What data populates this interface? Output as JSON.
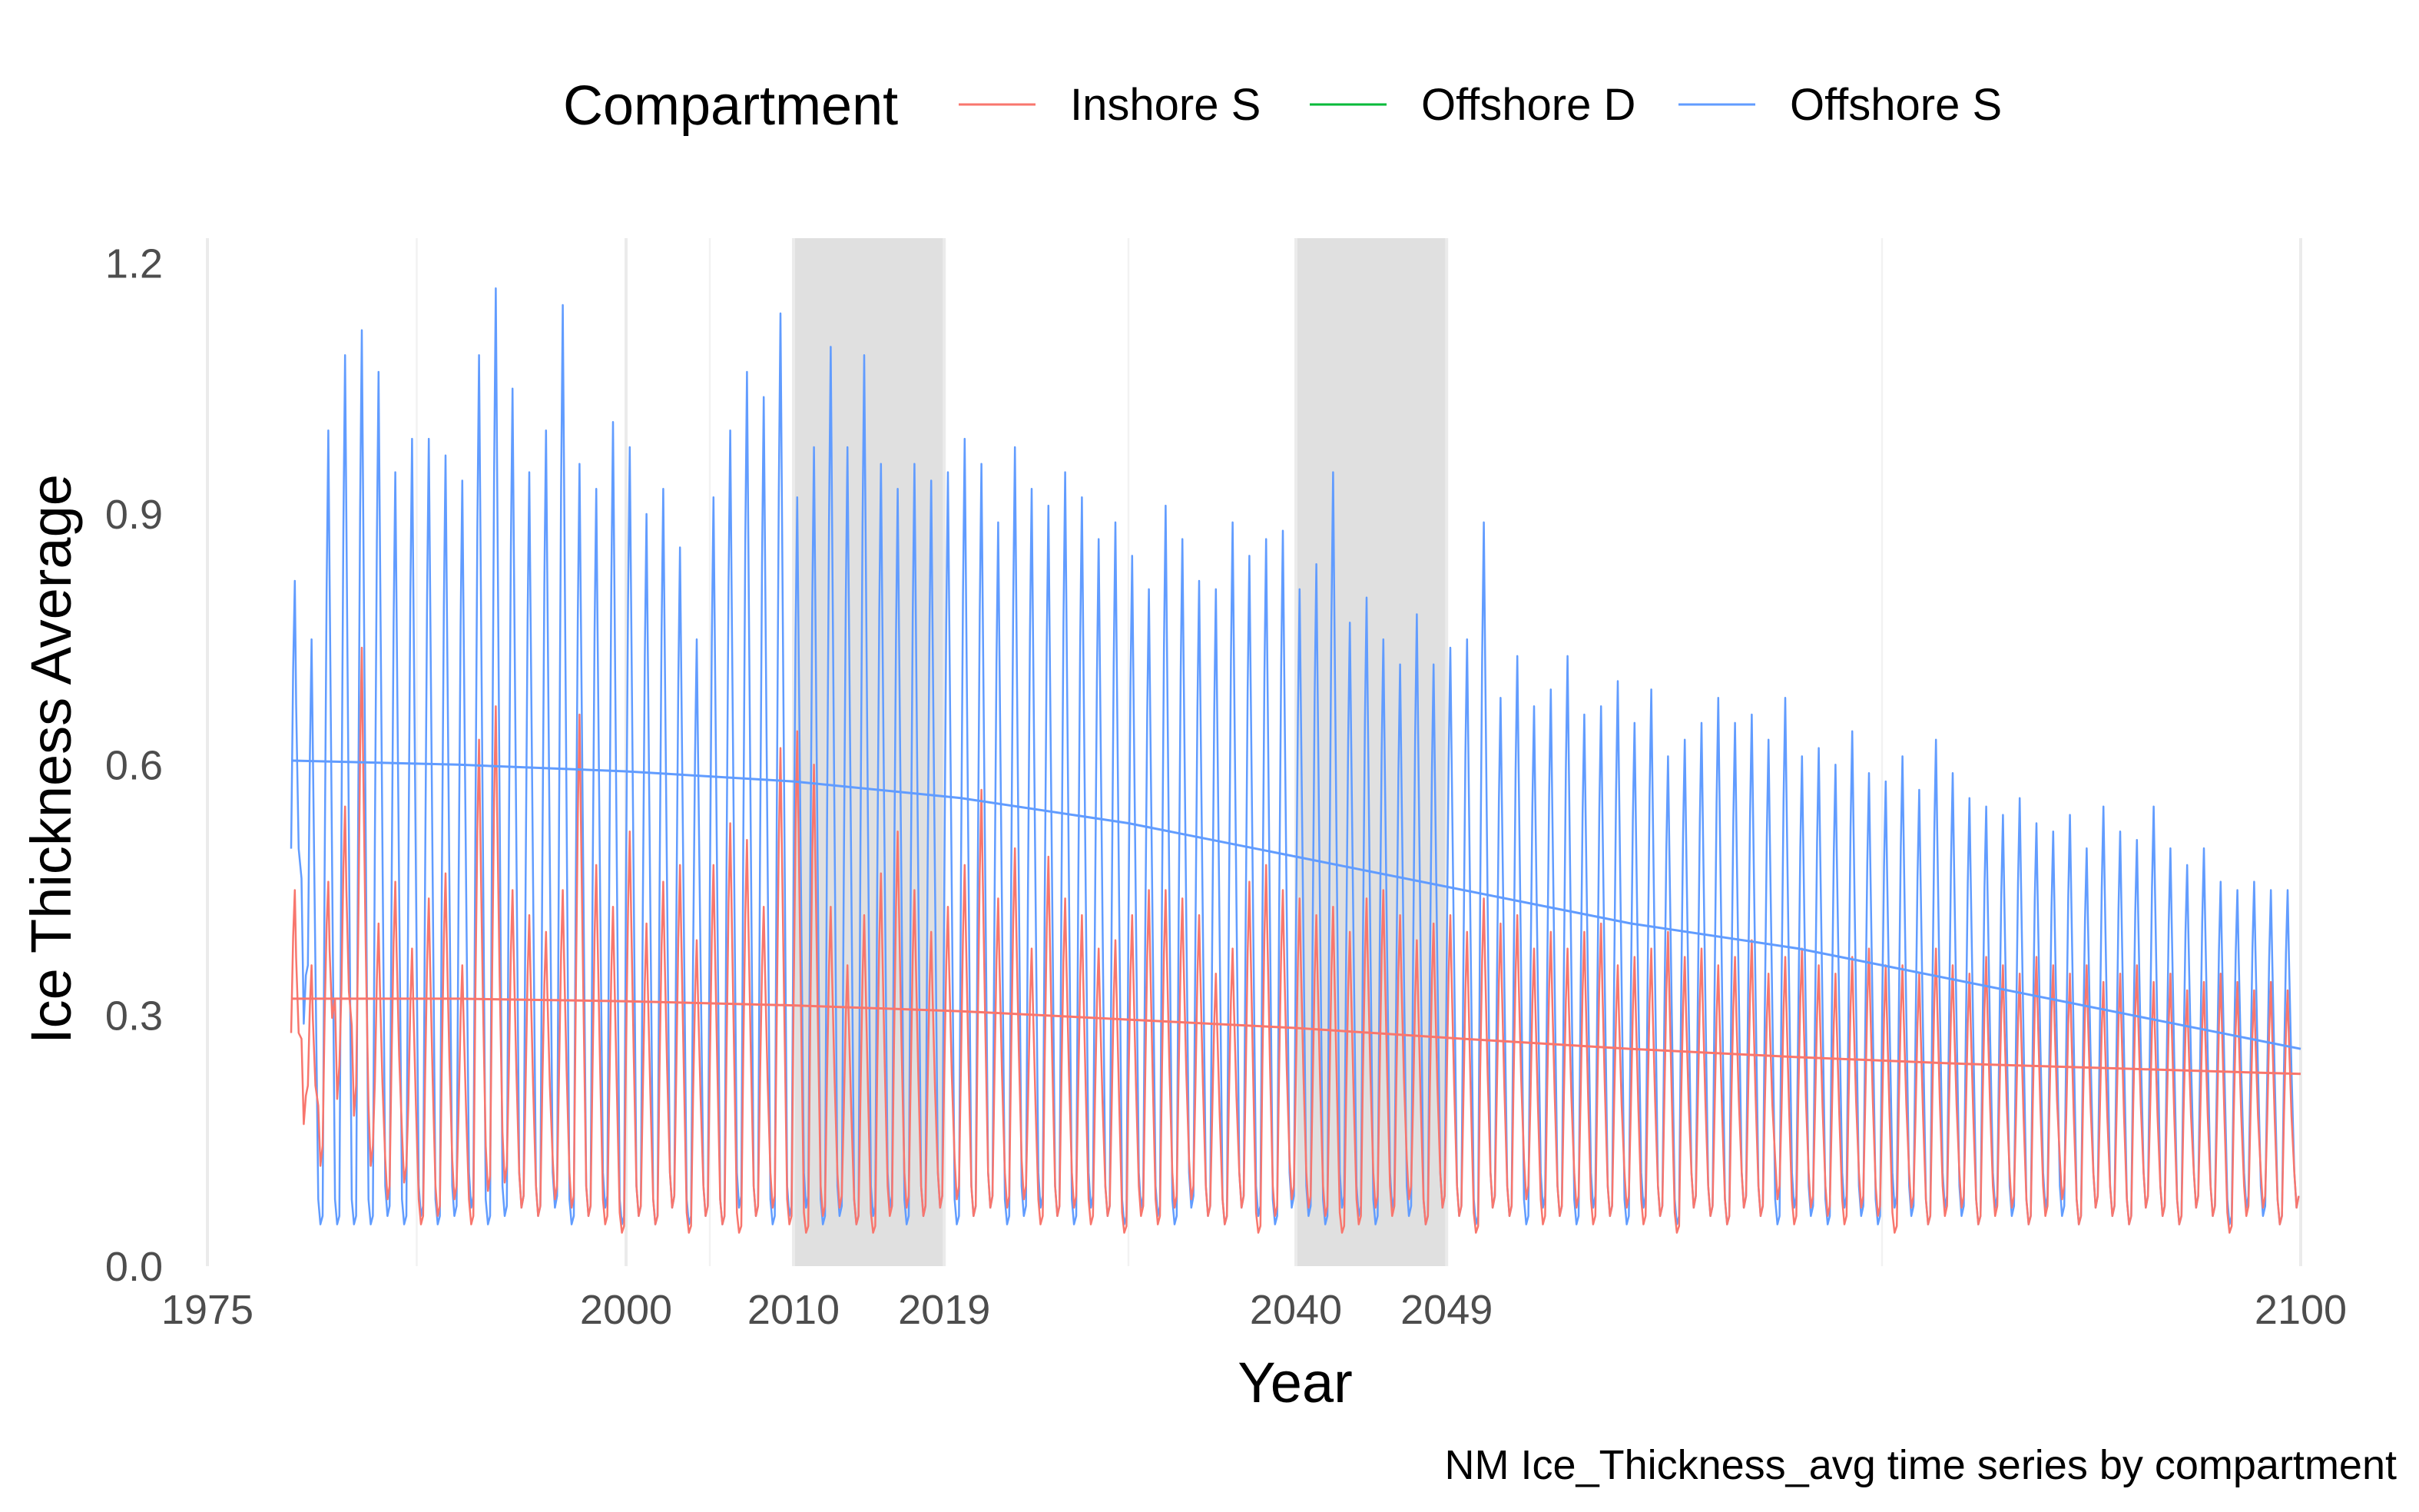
{
  "chart_data": {
    "type": "line",
    "xlabel": "Year",
    "ylabel": "Ice Thickness Average",
    "caption": "NM Ice_Thickness_avg time series by compartment",
    "xlim": [
      1975,
      2100
    ],
    "ylim": [
      0,
      1.23
    ],
    "x_ticks": [
      1975,
      2000,
      2010,
      2019,
      2040,
      2049,
      2100
    ],
    "y_ticks": [
      0.0,
      0.3,
      0.6,
      0.9,
      1.2
    ],
    "y_tick_labels": [
      "0.0",
      "0.3",
      "0.6",
      "0.9",
      "1.2"
    ],
    "x_minor_gridlines": [
      1987.5,
      2005,
      2030,
      2075
    ],
    "grid": true,
    "shaded_periods": [
      [
        2010,
        2019
      ],
      [
        2040,
        2049
      ]
    ],
    "legend": {
      "title": "Compartment",
      "position": "top",
      "entries": [
        {
          "label": "Inshore S",
          "color": "#F8766D"
        },
        {
          "label": "Offshore D",
          "color": "#00BA38"
        },
        {
          "label": "Offshore S",
          "color": "#619CFF"
        }
      ]
    },
    "series": [
      {
        "name": "Inshore S",
        "color": "#F8766D",
        "x_start": 1980,
        "x_end": 2100,
        "annual_peaks": [
          0.45,
          0.36,
          0.46,
          0.55,
          0.74,
          0.41,
          0.46,
          0.38,
          0.44,
          0.47,
          0.36,
          0.63,
          0.67,
          0.45,
          0.42,
          0.4,
          0.45,
          0.66,
          0.48,
          0.43,
          0.52,
          0.41,
          0.46,
          0.48,
          0.39,
          0.48,
          0.53,
          0.51,
          0.43,
          0.62,
          0.64,
          0.6,
          0.43,
          0.36,
          0.42,
          0.47,
          0.52,
          0.45,
          0.4,
          0.43,
          0.48,
          0.57,
          0.44,
          0.5,
          0.38,
          0.49,
          0.44,
          0.42,
          0.38,
          0.39,
          0.42,
          0.45,
          0.45,
          0.44,
          0.42,
          0.35,
          0.38,
          0.46,
          0.48,
          0.45,
          0.44,
          0.42,
          0.43,
          0.4,
          0.44,
          0.45,
          0.42,
          0.39,
          0.41,
          0.42,
          0.4,
          0.44,
          0.41,
          0.42,
          0.38,
          0.4,
          0.38,
          0.4,
          0.41,
          0.36,
          0.37,
          0.38,
          0.4,
          0.37,
          0.38,
          0.36,
          0.37,
          0.39,
          0.35,
          0.37,
          0.38,
          0.36,
          0.35,
          0.37,
          0.38,
          0.36,
          0.36,
          0.35,
          0.38,
          0.36,
          0.35,
          0.37,
          0.36,
          0.35,
          0.37,
          0.36,
          0.35,
          0.36,
          0.34,
          0.35,
          0.36,
          0.34,
          0.35,
          0.33,
          0.34,
          0.35,
          0.34,
          0.33,
          0.34,
          0.33
        ],
        "annual_troughs": [
          0.17,
          0.12,
          0.2,
          0.18,
          0.12,
          0.08,
          0.1,
          0.05,
          0.06,
          0.08,
          0.05,
          0.09,
          0.1,
          0.07,
          0.06,
          0.08,
          0.07,
          0.06,
          0.05,
          0.04,
          0.06,
          0.05,
          0.07,
          0.04,
          0.06,
          0.05,
          0.04,
          0.06,
          0.07,
          0.05,
          0.04,
          0.06,
          0.07,
          0.05,
          0.04,
          0.06,
          0.07,
          0.06,
          0.07,
          0.08,
          0.06,
          0.07,
          0.07,
          0.08,
          0.05,
          0.06,
          0.07,
          0.05,
          0.06,
          0.04,
          0.06,
          0.05,
          0.07,
          0.08,
          0.06,
          0.05,
          0.07,
          0.04,
          0.06,
          0.08,
          0.07,
          0.06,
          0.04,
          0.05,
          0.07,
          0.06,
          0.08,
          0.05,
          0.07,
          0.06,
          0.04,
          0.07,
          0.06,
          0.08,
          0.05,
          0.06,
          0.07,
          0.05,
          0.06,
          0.07,
          0.05,
          0.06,
          0.04,
          0.07,
          0.06,
          0.05,
          0.07,
          0.06,
          0.08,
          0.05,
          0.07,
          0.06,
          0.05,
          0.07,
          0.06,
          0.04,
          0.07,
          0.05,
          0.06,
          0.07,
          0.05,
          0.06,
          0.07,
          0.05,
          0.06,
          0.08,
          0.05,
          0.07,
          0.06,
          0.05,
          0.07,
          0.06,
          0.05,
          0.07,
          0.06,
          0.04,
          0.06,
          0.07,
          0.05,
          0.07
        ],
        "trend": [
          [
            1980,
            0.32
          ],
          [
            1990,
            0.32
          ],
          [
            2000,
            0.317
          ],
          [
            2010,
            0.312
          ],
          [
            2020,
            0.305
          ],
          [
            2030,
            0.295
          ],
          [
            2040,
            0.285
          ],
          [
            2050,
            0.272
          ],
          [
            2060,
            0.26
          ],
          [
            2070,
            0.25
          ],
          [
            2080,
            0.242
          ],
          [
            2090,
            0.236
          ],
          [
            2100,
            0.23
          ]
        ]
      },
      {
        "name": "Offshore D",
        "color": "#00BA38"
      },
      {
        "name": "Offshore S",
        "color": "#619CFF",
        "x_start": 1980,
        "x_end": 2100,
        "annual_peaks": [
          0.82,
          0.75,
          1.0,
          1.09,
          1.12,
          1.07,
          0.95,
          0.99,
          0.99,
          0.97,
          0.94,
          1.09,
          1.17,
          1.05,
          0.95,
          1.0,
          1.15,
          0.96,
          0.93,
          1.01,
          0.98,
          0.9,
          0.93,
          0.86,
          0.75,
          0.92,
          1.0,
          1.07,
          1.04,
          1.14,
          0.92,
          0.98,
          1.1,
          0.98,
          1.09,
          0.96,
          0.93,
          0.96,
          0.94,
          0.95,
          0.99,
          0.96,
          0.89,
          0.98,
          0.93,
          0.91,
          0.95,
          0.92,
          0.87,
          0.89,
          0.85,
          0.81,
          0.91,
          0.87,
          0.82,
          0.81,
          0.89,
          0.85,
          0.87,
          0.88,
          0.81,
          0.84,
          0.95,
          0.77,
          0.8,
          0.75,
          0.72,
          0.78,
          0.72,
          0.74,
          0.75,
          0.89,
          0.68,
          0.73,
          0.67,
          0.69,
          0.73,
          0.66,
          0.67,
          0.7,
          0.65,
          0.69,
          0.61,
          0.63,
          0.65,
          0.68,
          0.65,
          0.66,
          0.63,
          0.68,
          0.61,
          0.62,
          0.6,
          0.64,
          0.59,
          0.58,
          0.61,
          0.57,
          0.63,
          0.59,
          0.56,
          0.55,
          0.54,
          0.56,
          0.53,
          0.52,
          0.54,
          0.5,
          0.55,
          0.52,
          0.51,
          0.55,
          0.5,
          0.48,
          0.5,
          0.46,
          0.45,
          0.46,
          0.45,
          0.45
        ],
        "annual_troughs": [
          0.29,
          0.05,
          0.05,
          0.05,
          0.05,
          0.06,
          0.05,
          0.06,
          0.05,
          0.06,
          0.07,
          0.05,
          0.06,
          0.07,
          0.06,
          0.07,
          0.05,
          0.06,
          0.07,
          0.05,
          0.06,
          0.05,
          0.07,
          0.05,
          0.06,
          0.05,
          0.07,
          0.06,
          0.05,
          0.06,
          0.07,
          0.05,
          0.06,
          0.05,
          0.06,
          0.07,
          0.05,
          0.06,
          0.07,
          0.05,
          0.06,
          0.07,
          0.05,
          0.06,
          0.07,
          0.06,
          0.05,
          0.07,
          0.06,
          0.05,
          0.07,
          0.06,
          0.05,
          0.07,
          0.06,
          0.05,
          0.07,
          0.06,
          0.05,
          0.07,
          0.06,
          0.05,
          0.07,
          0.06,
          0.05,
          0.07,
          0.06,
          0.05,
          0.07,
          0.06,
          0.05,
          0.07,
          0.06,
          0.05,
          0.07,
          0.06,
          0.05,
          0.07,
          0.06,
          0.05,
          0.07,
          0.06,
          0.05,
          0.07,
          0.06,
          0.05,
          0.07,
          0.06,
          0.05,
          0.07,
          0.06,
          0.05,
          0.07,
          0.06,
          0.05,
          0.07,
          0.06,
          0.05,
          0.07,
          0.06,
          0.05,
          0.07,
          0.06,
          0.05,
          0.07,
          0.06,
          0.05,
          0.07,
          0.06,
          0.05,
          0.07,
          0.06,
          0.05,
          0.07,
          0.06,
          0.05,
          0.07,
          0.06,
          0.05,
          0.07
        ],
        "trend": [
          [
            1980,
            0.605
          ],
          [
            1990,
            0.6
          ],
          [
            2000,
            0.592
          ],
          [
            2010,
            0.58
          ],
          [
            2020,
            0.56
          ],
          [
            2030,
            0.53
          ],
          [
            2040,
            0.49
          ],
          [
            2050,
            0.45
          ],
          [
            2060,
            0.41
          ],
          [
            2070,
            0.38
          ],
          [
            2080,
            0.34
          ],
          [
            2090,
            0.3
          ],
          [
            2100,
            0.26
          ]
        ]
      }
    ]
  }
}
